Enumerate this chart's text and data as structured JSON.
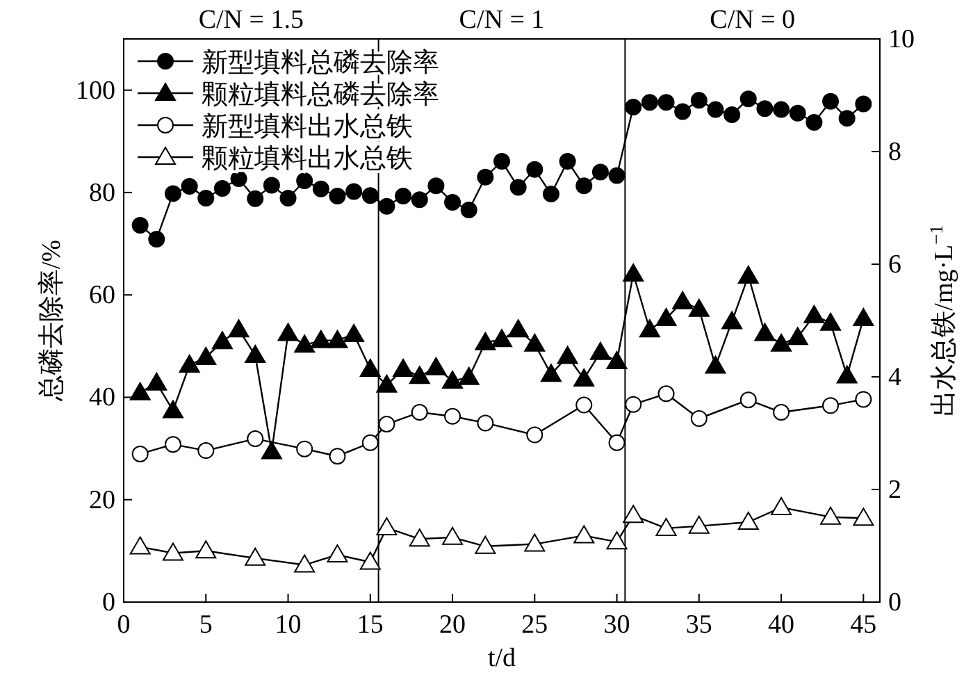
{
  "chart_data": {
    "type": "line",
    "xlabel": "t/d",
    "ylabel": "总磷去除率/%",
    "y2label": "出水总铁/mg·L$^{−1}$",
    "xlim": [
      0,
      46
    ],
    "xticks": [
      0,
      5,
      10,
      15,
      20,
      25,
      30,
      35,
      40,
      45
    ],
    "ylim": [
      0,
      110
    ],
    "yticks": [
      0,
      20,
      40,
      60,
      80,
      100
    ],
    "y2lim": [
      0,
      10
    ],
    "y2ticks": [
      0,
      2,
      4,
      6,
      8,
      10
    ],
    "legend": "top left",
    "grid": false,
    "series": [
      {
        "name": "新型填料总磷去除率",
        "color": "#000000",
        "marker": "circle",
        "x": [
          1,
          2,
          3,
          4,
          5,
          6,
          7,
          8,
          9,
          10,
          11,
          12,
          13,
          14,
          15,
          16,
          17,
          18,
          19,
          20,
          21,
          22,
          23,
          24,
          25,
          26,
          27,
          28,
          29,
          30,
          31,
          32,
          33,
          34,
          35,
          36,
          37,
          38,
          39,
          40,
          41,
          42,
          43,
          44,
          45
        ],
        "values": [
          73.6,
          70.9,
          79.8,
          81.2,
          78.9,
          80.8,
          82.7,
          78.8,
          81.4,
          78.9,
          82.3,
          80.7,
          79.3,
          80.2,
          79.4,
          77.3,
          79.3,
          78.6,
          81.3,
          78.1,
          76.6,
          83.0,
          86.1,
          81.0,
          84.5,
          79.7,
          86.1,
          81.3,
          84.0,
          83.3,
          96.7,
          97.6,
          97.6,
          95.8,
          98.0,
          96.2,
          95.2,
          98.3,
          96.4,
          96.2,
          95.5,
          93.7,
          97.8,
          94.5,
          97.3
        ]
      },
      {
        "name": "颗粒填料总磷去除率",
        "color": "#000000",
        "marker": "triangle",
        "x": [
          1,
          2,
          3,
          4,
          5,
          6,
          7,
          8,
          9,
          10,
          11,
          12,
          13,
          14,
          15,
          16,
          17,
          18,
          19,
          20,
          21,
          22,
          23,
          24,
          25,
          26,
          27,
          28,
          29,
          30,
          31,
          32,
          33,
          34,
          35,
          36,
          37,
          38,
          39,
          40,
          41,
          42,
          43,
          44,
          45
        ],
        "values": [
          40.9,
          42.8,
          37.4,
          46.3,
          47.8,
          50.9,
          53.2,
          48.2,
          29.4,
          52.5,
          50.2,
          51.1,
          51.1,
          52.3,
          45.5,
          42.4,
          45.5,
          44.1,
          45.8,
          43.2,
          43.9,
          50.7,
          51.3,
          53.2,
          50.4,
          44.5,
          48.0,
          43.6,
          48.8,
          47.0,
          64.1,
          53.2,
          55.4,
          58.7,
          57.2,
          46.1,
          54.8,
          63.7,
          52.5,
          50.4,
          51.7,
          56.0,
          54.5,
          44.2,
          55.4
        ]
      },
      {
        "name": "新型填料出水总铁",
        "color": "#000000",
        "marker": "circle",
        "axis": "y2",
        "x": [
          1,
          3,
          5,
          8,
          11,
          13,
          15,
          16,
          18,
          20,
          22,
          25,
          28,
          30,
          31,
          33,
          35,
          38,
          40,
          43,
          45
        ],
        "values": [
          2.63,
          2.8,
          2.69,
          2.9,
          2.72,
          2.59,
          2.83,
          3.16,
          3.37,
          3.3,
          3.18,
          2.97,
          3.5,
          2.83,
          3.51,
          3.7,
          3.26,
          3.59,
          3.37,
          3.49,
          3.6
        ]
      },
      {
        "name": "颗粒填料出水总铁",
        "color": "#000000",
        "marker": "triangle",
        "axis": "y2",
        "x": [
          1,
          3,
          5,
          8,
          11,
          13,
          15,
          16,
          18,
          20,
          22,
          25,
          28,
          30,
          31,
          33,
          35,
          38,
          40,
          43,
          45
        ],
        "values": [
          0.98,
          0.87,
          0.91,
          0.78,
          0.66,
          0.84,
          0.71,
          1.32,
          1.12,
          1.15,
          0.99,
          1.03,
          1.18,
          1.07,
          1.54,
          1.31,
          1.35,
          1.42,
          1.68,
          1.51,
          1.49
        ]
      }
    ],
    "ref_lines": [
      {
        "axis": "x",
        "value": 15.5,
        "color": "#000000"
      },
      {
        "axis": "x",
        "value": 30.5,
        "color": "#000000"
      }
    ],
    "annotations": [
      "C/N = 1.5",
      "C/N = 1",
      "C/N = 0"
    ]
  }
}
